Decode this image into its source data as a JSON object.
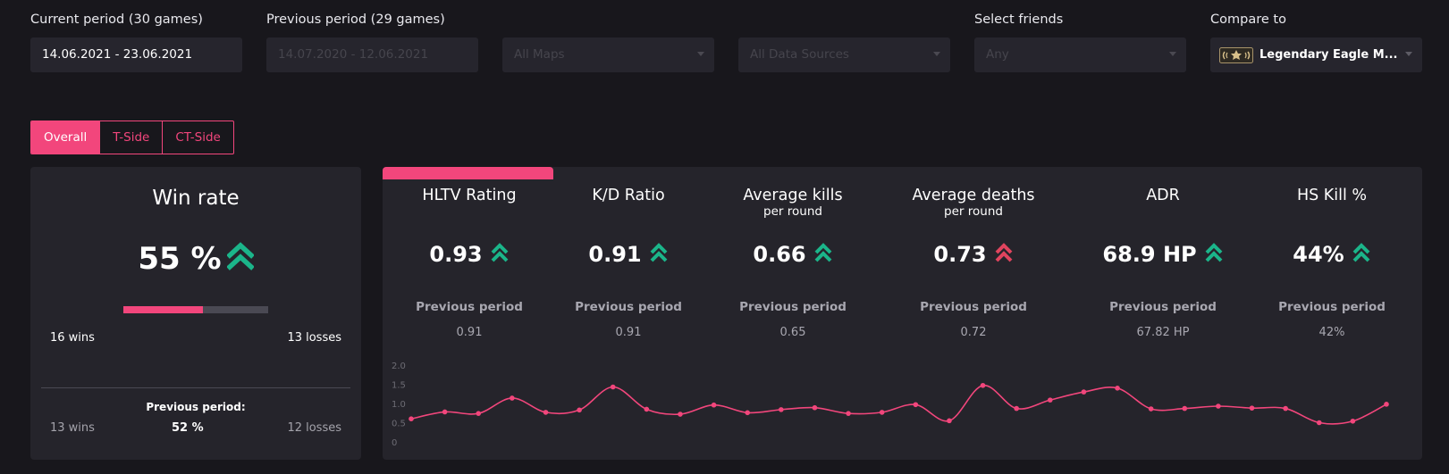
{
  "filters": {
    "current_period": {
      "label": "Current period (30 games)",
      "value": "14.06.2021 - 23.06.2021"
    },
    "previous_period": {
      "label": "Previous period (29 games)",
      "value": "14.07.2020 - 12.06.2021"
    },
    "maps": {
      "value": "All Maps"
    },
    "data_sources": {
      "value": "All Data Sources"
    },
    "friends": {
      "label": "Select friends",
      "value": "Any"
    },
    "compare": {
      "label": "Compare to",
      "value": "Legendary Eagle M...",
      "icon": "rank-badge-icon"
    }
  },
  "tabs": [
    {
      "label": "Overall",
      "active": true
    },
    {
      "label": "T-Side",
      "active": false
    },
    {
      "label": "CT-Side",
      "active": false
    }
  ],
  "win_rate": {
    "title": "Win rate",
    "value": "55 %",
    "fraction": 0.55,
    "wins": "16 wins",
    "losses": "13 losses",
    "previous": {
      "label": "Previous period:",
      "wins": "13 wins",
      "rate": "52 %",
      "losses": "12 losses"
    }
  },
  "stats": [
    {
      "title": "HLTV Rating",
      "subtitle": "",
      "value": "0.93",
      "trend": "up",
      "prev_label": "Previous period",
      "prev_value": "0.91"
    },
    {
      "title": "K/D Ratio",
      "subtitle": "",
      "value": "0.91",
      "trend": "up",
      "prev_label": "Previous period",
      "prev_value": "0.91"
    },
    {
      "title": "Average kills",
      "subtitle": "per round",
      "value": "0.66",
      "trend": "up",
      "prev_label": "Previous period",
      "prev_value": "0.65"
    },
    {
      "title": "Average deaths",
      "subtitle": "per round",
      "value": "0.73",
      "trend": "up-bad",
      "prev_label": "Previous period",
      "prev_value": "0.72"
    },
    {
      "title": "ADR",
      "subtitle": "",
      "value": "68.9 HP",
      "trend": "up",
      "prev_label": "Previous period",
      "prev_value": "67.82 HP"
    },
    {
      "title": "HS Kill %",
      "subtitle": "",
      "value": "44%",
      "trend": "up",
      "prev_label": "Previous period",
      "prev_value": "42%"
    }
  ],
  "colors": {
    "accent": "#f2467c",
    "positive": "#1bb58a",
    "negative": "#e0445e"
  },
  "chart_data": {
    "type": "line",
    "ylim": [
      0,
      2.0
    ],
    "yticks": [
      "2.0",
      "1.5",
      "1.0",
      "0.5",
      "0"
    ],
    "series": [
      {
        "values": [
          0.6,
          0.78,
          0.74,
          1.14,
          0.77,
          0.83,
          1.43,
          0.85,
          0.72,
          0.96,
          0.76,
          0.84,
          0.89,
          0.74,
          0.77,
          0.97,
          0.55,
          1.47,
          0.87,
          1.09,
          1.3,
          1.4,
          0.86,
          0.87,
          0.93,
          0.88,
          0.87,
          0.5,
          0.54,
          0.98
        ]
      }
    ]
  }
}
